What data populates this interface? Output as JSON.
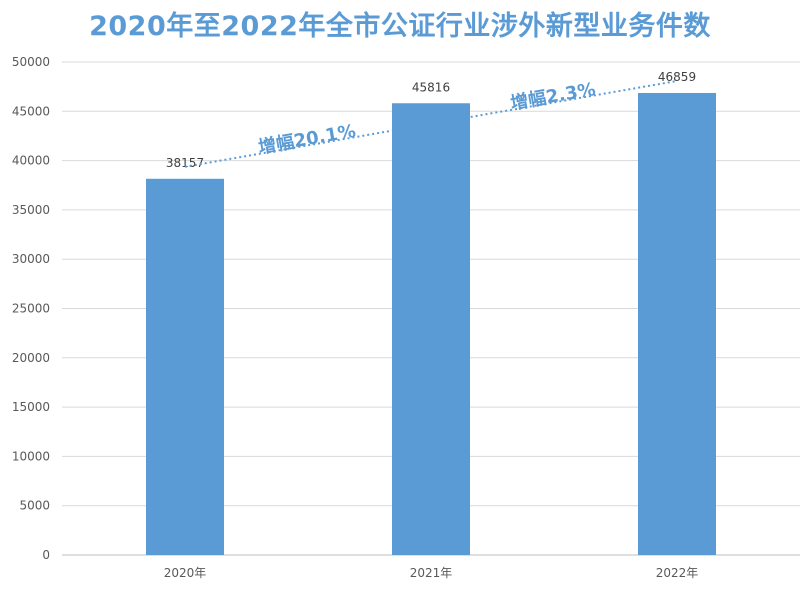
{
  "chart_data": {
    "type": "bar",
    "title": "2020年至2022年全市公证行业涉外新型业务件数",
    "categories": [
      "2020年",
      "2021年",
      "2022年"
    ],
    "values": [
      38157,
      45816,
      46859
    ],
    "ylim": [
      0,
      50000
    ],
    "yticks": [
      0,
      5000,
      10000,
      15000,
      20000,
      25000,
      30000,
      35000,
      40000,
      45000,
      50000
    ],
    "grid": true,
    "bar_color": "#5b9bd5",
    "trend_line": {
      "style": "dotted",
      "color": "#5b9bd5"
    },
    "annotations": [
      "增幅20.1%",
      "增幅2.3%"
    ]
  }
}
